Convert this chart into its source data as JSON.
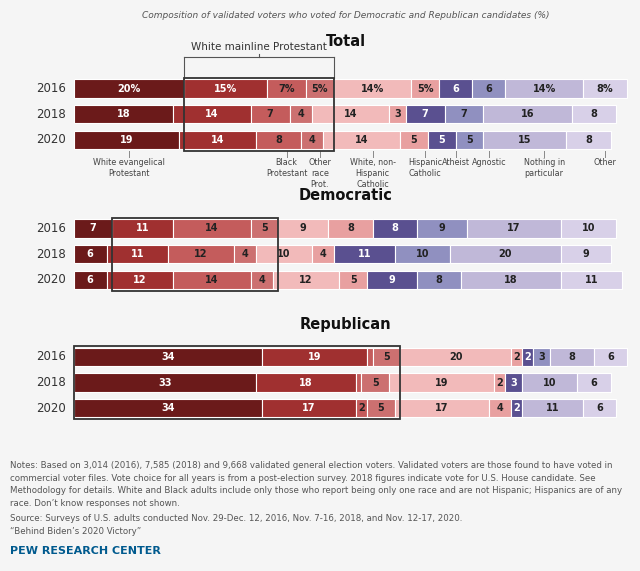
{
  "subtitle": "Composition of validated voters who voted for Democratic and Republican candidates (%)",
  "years": [
    "2016",
    "2018",
    "2020"
  ],
  "seg_colors": [
    "#6b1a1a",
    "#a03030",
    "#c45c5c",
    "#cc7070",
    "#f2baba",
    "#e8a0a0",
    "#5a5090",
    "#9090c0",
    "#c0b8d8",
    "#d8d0e8"
  ],
  "total": {
    "2016": [
      20,
      15,
      7,
      5,
      14,
      5,
      6,
      6,
      14,
      8
    ],
    "2018": [
      18,
      14,
      7,
      4,
      14,
      3,
      7,
      7,
      16,
      8
    ],
    "2020": [
      19,
      14,
      8,
      4,
      14,
      5,
      5,
      5,
      15,
      8
    ]
  },
  "democratic": {
    "2016": [
      7,
      11,
      14,
      5,
      9,
      8,
      8,
      9,
      17,
      10
    ],
    "2018": [
      6,
      11,
      12,
      4,
      10,
      4,
      11,
      10,
      20,
      9
    ],
    "2020": [
      6,
      12,
      14,
      4,
      12,
      5,
      9,
      8,
      18,
      11
    ]
  },
  "republican": {
    "2016": [
      34,
      19,
      1,
      5,
      20,
      2,
      2,
      3,
      8,
      6
    ],
    "2018": [
      33,
      18,
      1,
      5,
      19,
      2,
      3,
      0,
      10,
      6
    ],
    "2020": [
      34,
      17,
      2,
      5,
      17,
      4,
      2,
      0,
      11,
      6
    ]
  },
  "total_pct_labels": {
    "2016": [
      "20%",
      "15%",
      "7%",
      "5%",
      "14%",
      "5%",
      "6",
      "6",
      "14%",
      "8%"
    ],
    "2018": [
      "18",
      "14",
      "7",
      "4",
      "14",
      "3",
      "7",
      "7",
      "16",
      "8"
    ],
    "2020": [
      "19",
      "14",
      "8",
      "4",
      "14",
      "5",
      "5",
      "5",
      "15",
      "8"
    ]
  },
  "x_labels": [
    "White evangelical\nProtestant",
    "",
    "Black\nProtestant",
    "Other\nrace\nProt.",
    "White, non-\nHispanic\nCatholic",
    "Hispanic\nCatholic",
    "Atheist",
    "Agnostic",
    "Nothing in\nparticular",
    "Other"
  ],
  "background_color": "#f5f5f5",
  "notes_line1": "Notes: Based on 3,014 (2016), 7,585 (2018) and 9,668 validated general election voters. Validated voters are those found to have voted in",
  "notes_line2": "commercial voter files. Vote choice for all years is from a post-election survey. 2018 figures indicate vote for U.S. House candidate. See",
  "notes_line3": "Methodology for details. White and Black adults include only those who report being only one race and are not Hispanic; Hispanics are of any",
  "notes_line4": "race. Don’t know responses not shown.",
  "source_line1": "Source: Surveys of U.S. adults conducted Nov. 29-Dec. 12, 2016, Nov. 7-16, 2018, and Nov. 12-17, 2020.",
  "source_line2": "“Behind Biden’s 2020 Victory”",
  "pew_label": "PEW RESEARCH CENTER"
}
